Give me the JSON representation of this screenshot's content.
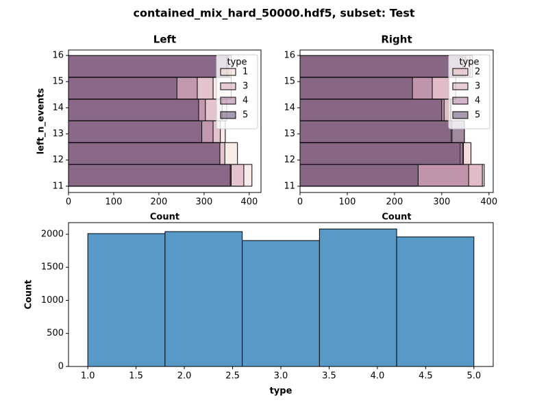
{
  "title": "contained_mix_hard_50000.hdf5, subset: Test",
  "chart_data": [
    {
      "type": "histogram",
      "orientation": "horizontal",
      "title": "Left",
      "xlabel": "Count",
      "ylabel": "left_n_events",
      "bins": [
        11,
        11.833,
        12.667,
        13.5,
        14.333,
        15.167,
        16
      ],
      "series": [
        {
          "name": "1",
          "color": "#f1d7d2",
          "values": [
            406,
            374,
            347,
            350,
            360,
            360
          ]
        },
        {
          "name": "3",
          "color": "#cf9db0",
          "values": [
            388,
            346,
            336,
            340,
            320,
            355
          ]
        },
        {
          "name": "4",
          "color": "#9f6b8f",
          "values": [
            360,
            335,
            320,
            303,
            285,
            352
          ]
        },
        {
          "name": "5",
          "color": "#4f3a5f",
          "values": [
            358,
            335,
            295,
            288,
            240,
            350
          ]
        }
      ],
      "xlim": [
        0,
        426
      ],
      "xticks": [
        0,
        100,
        200,
        300,
        400
      ],
      "ylim": [
        10.76,
        16.21
      ],
      "yticks": [
        11,
        12,
        13,
        14,
        15,
        16
      ],
      "legend_title": "type",
      "legend": "upper right",
      "grid": false
    },
    {
      "type": "histogram",
      "orientation": "horizontal",
      "title": "Right",
      "xlabel": "Count",
      "bins": [
        11,
        11.833,
        12.667,
        13.5,
        14.333,
        15.167,
        16
      ],
      "series": [
        {
          "name": "2",
          "color": "#e7b8bd",
          "values": [
            390,
            362,
            348,
            320,
            330,
            365
          ]
        },
        {
          "name": "3",
          "color": "#cf9db0",
          "values": [
            386,
            346,
            322,
            318,
            315,
            360
          ]
        },
        {
          "name": "4",
          "color": "#9f6b8f",
          "values": [
            357,
            339,
            320,
            305,
            280,
            350
          ]
        },
        {
          "name": "5",
          "color": "#4f3a5f",
          "values": [
            250,
            345,
            348,
            300,
            238,
            345
          ]
        }
      ],
      "xlim": [
        0,
        409
      ],
      "xticks": [
        0,
        100,
        200,
        300,
        400
      ],
      "ylim": [
        10.76,
        16.21
      ],
      "yticks": [
        11,
        12,
        13,
        14,
        15,
        16
      ],
      "legend_title": "type",
      "legend": "upper right",
      "grid": false
    },
    {
      "type": "histogram",
      "orientation": "vertical",
      "xlabel": "type",
      "ylabel": "Count",
      "bins": [
        1,
        1.8,
        2.6,
        3.4,
        4.2,
        5
      ],
      "values": [
        2010,
        2040,
        1905,
        2080,
        1960
      ],
      "color": "#5799c7",
      "xlim": [
        0.8,
        5.2
      ],
      "xticks": [
        {
          "value": 1,
          "label": "1.0"
        },
        {
          "value": 1.5,
          "label": "1.5"
        },
        {
          "value": 2,
          "label": "2.0"
        },
        {
          "value": 2.5,
          "label": "2.5"
        },
        {
          "value": 3,
          "label": "3.0"
        },
        {
          "value": 3.5,
          "label": "3.5"
        },
        {
          "value": 4,
          "label": "4.0"
        },
        {
          "value": 4.5,
          "label": "4.5"
        },
        {
          "value": 5,
          "label": "5.0"
        }
      ],
      "ylim": [
        0,
        2176
      ],
      "yticks": [
        0,
        500,
        1000,
        1500,
        2000
      ],
      "grid": false
    }
  ]
}
